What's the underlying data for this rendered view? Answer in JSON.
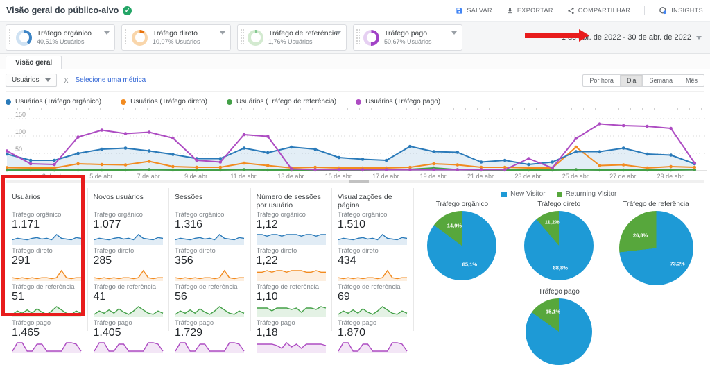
{
  "colors": {
    "blue": "#2a7ab9",
    "orange": "#f28b20",
    "green": "#43a047",
    "purple": "#ad4bc2",
    "blue_area": "rgba(42,122,185,0.13)",
    "pie_blue": "#1e9ad6",
    "pie_green": "#57a73c",
    "link_blue": "#3367d6",
    "annotation_red": "#e81c1c",
    "icon_blue": "#4285f4"
  },
  "header": {
    "title": "Visão geral do público-alvo",
    "toolbar": [
      {
        "label": "SALVAR",
        "icon": "save-icon"
      },
      {
        "label": "EXPORTAR",
        "icon": "export-icon"
      },
      {
        "label": "COMPARTILHAR",
        "icon": "share-icon"
      },
      {
        "label": "INSIGHTS",
        "icon": "insights-icon"
      }
    ]
  },
  "segments": [
    {
      "name": "Tráfego orgânico",
      "subtitle": "40,51% Usuários",
      "pct": 40.51,
      "color": "#3d85c6",
      "track": "#cfe2f3"
    },
    {
      "name": "Tráfego direto",
      "subtitle": "10,07% Usuários",
      "pct": 10.07,
      "color": "#e8710a",
      "track": "#f9d6ab"
    },
    {
      "name": "Tráfego de referência",
      "subtitle": "1,76% Usuários",
      "pct": 1.76,
      "color": "#34a853",
      "track": "#d3ead0"
    },
    {
      "name": "Tráfego pago",
      "subtitle": "50,67% Usuários",
      "pct": 50.67,
      "color": "#a142c6",
      "track": "#e6d0f2"
    }
  ],
  "date_range": "1 de abr. de 2022 - 30 de abr. de 2022",
  "tabs": {
    "overview": "Visão geral"
  },
  "controls": {
    "metric_selected": "Usuários",
    "remove_metric": "X",
    "add_metric_link": "Selecione uma métrica",
    "granularity": [
      "Por hora",
      "Dia",
      "Semana",
      "Mês"
    ],
    "granularity_selected": "Dia"
  },
  "chart_data": {
    "type": "line",
    "x_unit": "day of April 2022",
    "x": [
      1,
      2,
      3,
      4,
      5,
      6,
      7,
      8,
      9,
      10,
      11,
      12,
      13,
      14,
      15,
      16,
      17,
      18,
      19,
      20,
      21,
      22,
      23,
      24,
      25,
      26,
      27,
      28,
      29,
      30
    ],
    "xticks": [
      {
        "day": 3,
        "label": "3 de abr."
      },
      {
        "day": 5,
        "label": "5 de abr."
      },
      {
        "day": 7,
        "label": "7 de abr."
      },
      {
        "day": 9,
        "label": "9 de abr."
      },
      {
        "day": 11,
        "label": "11 de abr."
      },
      {
        "day": 13,
        "label": "13 de abr."
      },
      {
        "day": 15,
        "label": "15 de abr."
      },
      {
        "day": 17,
        "label": "17 de abr."
      },
      {
        "day": 19,
        "label": "19 de abr."
      },
      {
        "day": 21,
        "label": "21 de abr."
      },
      {
        "day": 23,
        "label": "23 de abr."
      },
      {
        "day": 25,
        "label": "25 de abr."
      },
      {
        "day": 27,
        "label": "27 de abr."
      },
      {
        "day": 29,
        "label": "29 de abr."
      }
    ],
    "x_more_label": "...",
    "ylim": [
      0,
      150
    ],
    "yticks": [
      50,
      100,
      150
    ],
    "grid": true,
    "legend_position": "top",
    "series": [
      {
        "name": "Usuários (Tráfego orgânico)",
        "color": "#2a7ab9",
        "fill_under": true,
        "values": [
          48,
          30,
          30,
          50,
          62,
          65,
          57,
          47,
          35,
          35,
          65,
          52,
          68,
          62,
          38,
          33,
          30,
          70,
          55,
          53,
          25,
          30,
          18,
          25,
          55,
          55,
          65,
          48,
          45,
          20
        ]
      },
      {
        "name": "Usuários (Tráfego direto)",
        "color": "#f28b20",
        "fill_under": false,
        "values": [
          9,
          8,
          8,
          20,
          18,
          17,
          27,
          12,
          10,
          10,
          22,
          15,
          8,
          10,
          8,
          8,
          8,
          10,
          20,
          17,
          10,
          10,
          8,
          8,
          68,
          15,
          17,
          8,
          12,
          10
        ]
      },
      {
        "name": "Usuários (Tráfego de referência)",
        "color": "#43a047",
        "fill_under": false,
        "values": [
          2,
          2,
          2,
          2,
          2,
          2,
          3,
          2,
          2,
          2,
          3,
          2,
          2,
          2,
          2,
          2,
          3,
          4,
          8,
          3,
          2,
          2,
          2,
          2,
          3,
          2,
          2,
          2,
          2,
          3
        ]
      },
      {
        "name": "Usuários (Tráfego pago)",
        "color": "#ad4bc2",
        "fill_under": false,
        "values": [
          57,
          20,
          18,
          97,
          117,
          107,
          111,
          94,
          30,
          25,
          104,
          99,
          5,
          3,
          3,
          3,
          3,
          3,
          3,
          3,
          3,
          3,
          35,
          8,
          93,
          135,
          130,
          128,
          122,
          22
        ]
      }
    ]
  },
  "scorecards": {
    "row_labels": [
      "Tráfego orgânico",
      "Tráfego direto",
      "Tráfego de referência",
      "Tráfego pago"
    ],
    "columns": [
      {
        "title": "Usuários",
        "values": [
          "1.171",
          "291",
          "51",
          "1.465"
        ]
      },
      {
        "title": "Novos usuários",
        "values": [
          "1.077",
          "285",
          "41",
          "1.405"
        ]
      },
      {
        "title": "Sessões",
        "values": [
          "1.316",
          "356",
          "56",
          "1.729"
        ]
      },
      {
        "title": "Número de sessões por usuário",
        "values": [
          "1,12",
          "1,22",
          "1,10",
          "1,18"
        ]
      },
      {
        "title": "Visualizações de página",
        "values": [
          "1.510",
          "434",
          "69",
          "1.870"
        ]
      }
    ],
    "sparks": {
      "organic": [
        6,
        8,
        7,
        6,
        8,
        9,
        7,
        8,
        6,
        13,
        8,
        7,
        6,
        9,
        8
      ],
      "direct": [
        3,
        2,
        3,
        2,
        3,
        2,
        3,
        3,
        2,
        3,
        11,
        3,
        2,
        3,
        3
      ],
      "referral": [
        2,
        5,
        3,
        6,
        3,
        7,
        4,
        2,
        5,
        9,
        6,
        3,
        2,
        5,
        3
      ],
      "paid": [
        1,
        7,
        7,
        1,
        1,
        6,
        6,
        1,
        1,
        1,
        1,
        7,
        7,
        6,
        1
      ],
      "flat_organic": [
        6,
        6,
        5,
        6,
        6,
        5,
        6,
        6,
        6,
        5,
        6,
        6,
        5,
        6,
        6
      ],
      "flat_direct": [
        5,
        5,
        6,
        5,
        6,
        6,
        5,
        6,
        6,
        6,
        5,
        5,
        6,
        5,
        5
      ],
      "flat_referral": [
        6,
        6,
        6,
        4,
        6,
        6,
        6,
        5,
        6,
        3,
        6,
        6,
        5,
        7,
        6
      ],
      "flat_paid": [
        6,
        6,
        6,
        6,
        5,
        3,
        7,
        4,
        6,
        3,
        6,
        6,
        6,
        6,
        5
      ]
    }
  },
  "pies": {
    "legend": [
      {
        "label": "New Visitor",
        "color": "#1e9ad6"
      },
      {
        "label": "Returning Visitor",
        "color": "#57a73c"
      }
    ],
    "charts": [
      {
        "title": "Tráfego orgânico",
        "new_pct": 85.1,
        "returning_pct": 14.9,
        "new_label": "85,1%",
        "returning_label": "14,9%"
      },
      {
        "title": "Tráfego direto",
        "new_pct": 88.8,
        "returning_pct": 11.2,
        "new_label": "88,8%",
        "returning_label": "11,2%"
      },
      {
        "title": "Tráfego de referência",
        "new_pct": 73.2,
        "returning_pct": 26.8,
        "new_label": "73,2%",
        "returning_label": "26,8%"
      },
      {
        "title": "Tráfego pago",
        "new_pct": 84.9,
        "returning_pct": 15.1,
        "new_label": "",
        "returning_label": "15,1%"
      }
    ]
  }
}
